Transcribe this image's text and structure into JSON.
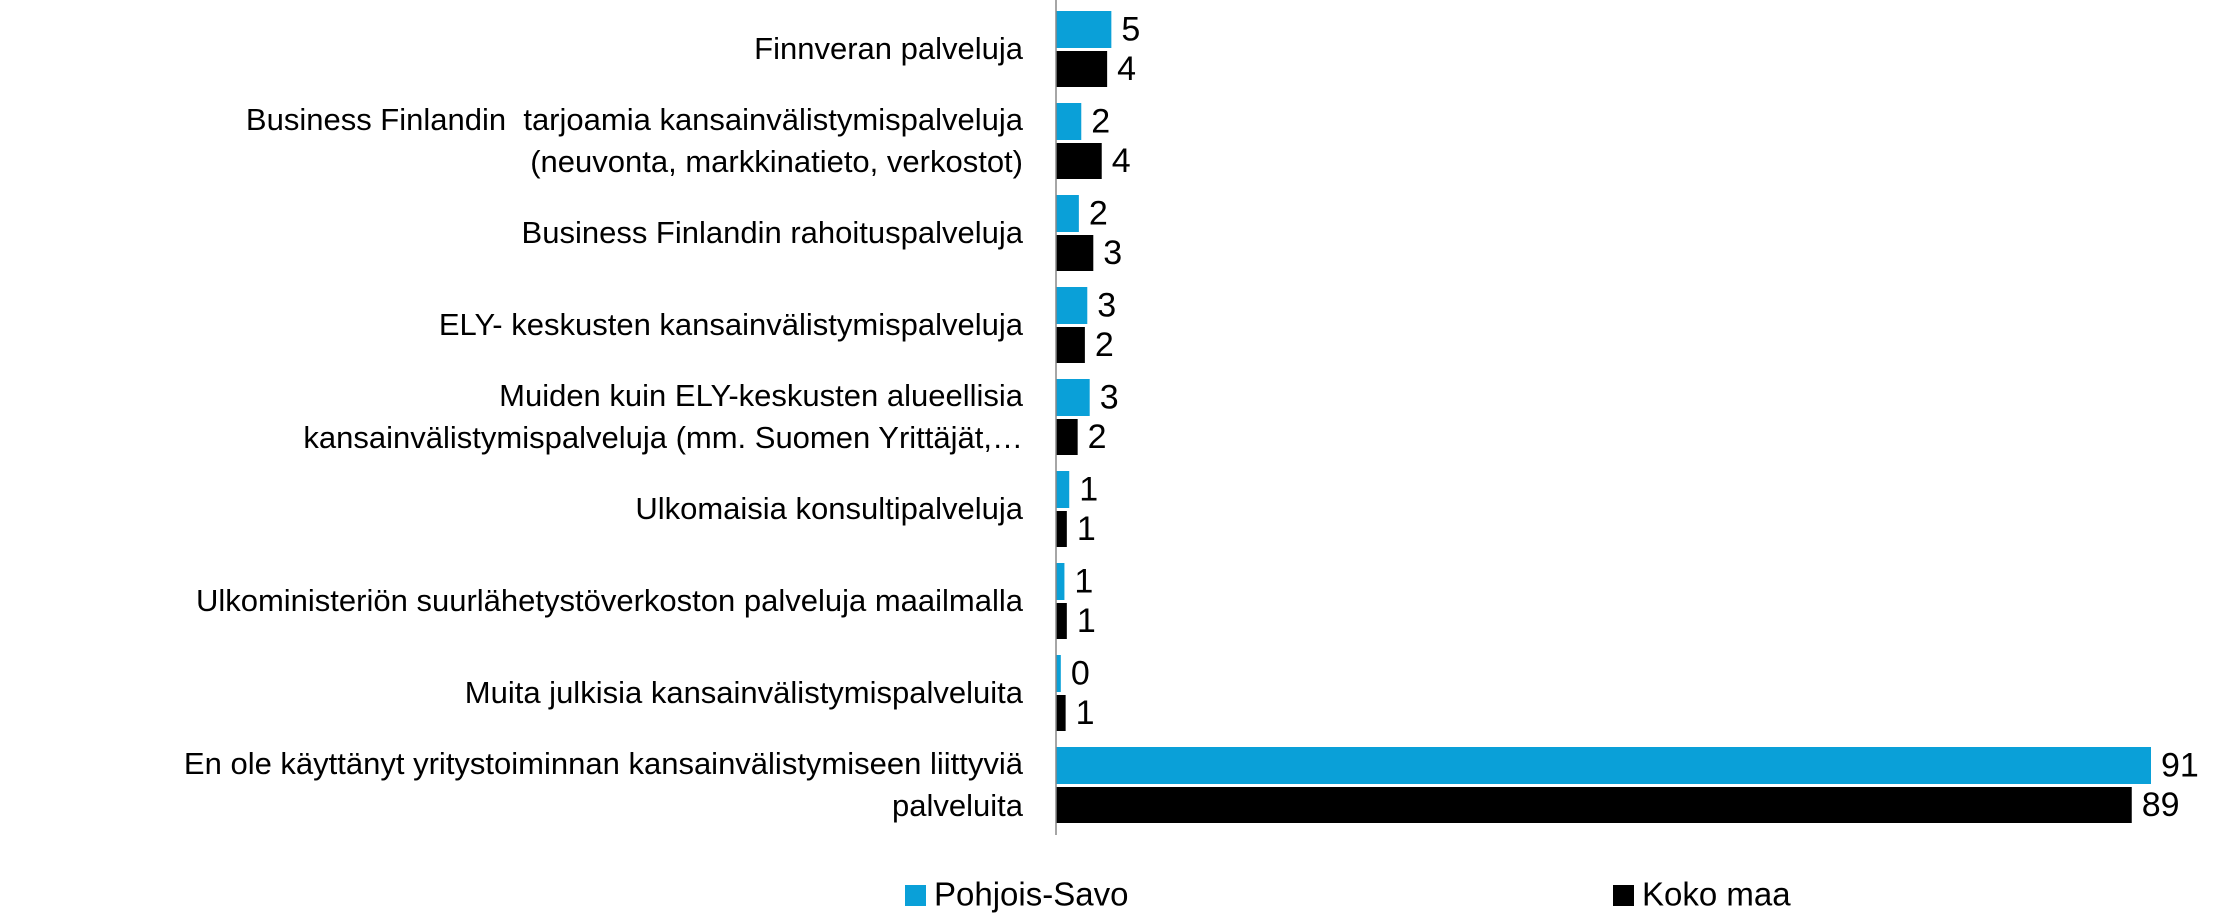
{
  "chart_data": {
    "type": "hbar",
    "categories": [
      "Finnveran palveluja",
      "Business Finlandin  tarjoamia kansainvälistymispalveluja\n(neuvonta, markkinatieto, verkostot)",
      "Business Finlandin rahoituspalveluja",
      "ELY- keskusten kansainvälistymispalveluja",
      "Muiden kuin ELY-keskusten alueellisia\nkansainvälistymispalveluja (mm. Suomen Yrittäjät,…",
      "Ulkomaisia konsultipalveluja",
      "Ulkoministeriön suurlähetystöverkoston palveluja maailmalla",
      "Muita julkisia kansainvälistymispalveluita",
      "En ole käyttänyt yritystoiminnan kansainvälistymiseen liittyviä\npalveluita"
    ],
    "series": [
      {
        "name": "Pohjois-Savo",
        "color": "#0aa0d8",
        "values": [
          4.6,
          2.1,
          1.9,
          2.6,
          2.8,
          1.1,
          0.7,
          0.4,
          91
        ],
        "value_labels": [
          "5",
          "2",
          "2",
          "3",
          "3",
          "1",
          "1",
          "0",
          "91"
        ]
      },
      {
        "name": "Koko maa",
        "color": "#000000",
        "values": [
          4.25,
          3.8,
          3.1,
          2.4,
          1.8,
          0.9,
          0.9,
          0.8,
          89.4
        ],
        "value_labels": [
          "4",
          "4",
          "3",
          "2",
          "2",
          "1",
          "1",
          "1",
          "89"
        ]
      }
    ],
    "xlim": [
      0,
      91
    ],
    "legend": "bottom"
  }
}
